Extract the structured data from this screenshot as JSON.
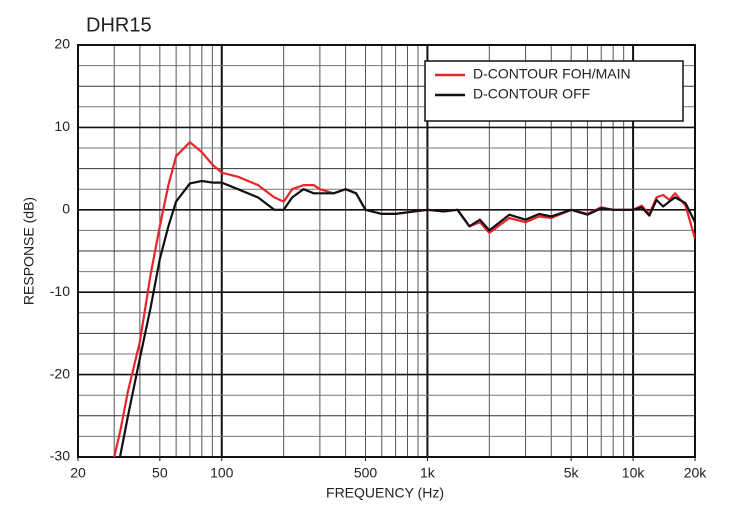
{
  "chart_data": {
    "type": "line",
    "title": "DHR15",
    "xlabel": "FREQUENCY (Hz)",
    "ylabel": "RESPONSE (dB)",
    "xscale": "log",
    "grid": true,
    "legend": "upper-right",
    "x": [
      30,
      32,
      35,
      40,
      45,
      50,
      55,
      60,
      70,
      80,
      90,
      100,
      120,
      150,
      180,
      200,
      220,
      250,
      280,
      300,
      350,
      400,
      450,
      500,
      600,
      700,
      800,
      1000,
      1200,
      1400,
      1600,
      1800,
      2000,
      2500,
      3000,
      3500,
      4000,
      5000,
      6000,
      7000,
      8000,
      10000,
      11000,
      12000,
      13000,
      14000,
      15000,
      16000,
      18000,
      20000
    ],
    "series": [
      {
        "name": "D-CONTOUR FOH/MAIN",
        "color": "#e8252b",
        "values": [
          -30,
          -27,
          -22,
          -16,
          -8,
          -2,
          3,
          6.5,
          8.2,
          7,
          5.5,
          4.5,
          4,
          3,
          1.5,
          1,
          2.5,
          3,
          3,
          2.5,
          2,
          2.5,
          2,
          0,
          -0.5,
          -0.5,
          -0.3,
          0,
          -0.2,
          0,
          -2,
          -1.5,
          -2.8,
          -1,
          -1.5,
          -0.8,
          -1,
          0,
          -0.5,
          0.3,
          0,
          0,
          0.5,
          -0.5,
          1.5,
          1.8,
          1.2,
          2,
          0.5,
          -3.5
        ]
      },
      {
        "name": "D-CONTOUR OFF",
        "color": "#111111",
        "values": [
          null,
          -30,
          -25,
          -18,
          -12,
          -6,
          -2,
          1,
          3.2,
          3.5,
          3.3,
          3.3,
          2.5,
          1.5,
          0,
          0,
          1.5,
          2.5,
          2,
          2,
          2,
          2.5,
          2,
          0,
          -0.5,
          -0.5,
          -0.3,
          0,
          -0.2,
          0,
          -2,
          -1.2,
          -2.5,
          -0.6,
          -1.2,
          -0.5,
          -0.8,
          0,
          -0.6,
          0.2,
          0,
          0,
          0.3,
          -0.7,
          1.2,
          0.4,
          1,
          1.5,
          0.8,
          -1.5
        ]
      }
    ],
    "xlim": [
      20,
      20000
    ],
    "ylim": [
      -30,
      20
    ],
    "xticks": [
      20,
      50,
      100,
      500,
      {
        "value": 1000,
        "label": "1k"
      },
      {
        "value": 5000,
        "label": "5k"
      },
      {
        "value": 10000,
        "label": "10k"
      },
      {
        "value": 20000,
        "label": "20k"
      }
    ],
    "yticks": [
      -30,
      -20,
      -10,
      0,
      10,
      20
    ]
  }
}
